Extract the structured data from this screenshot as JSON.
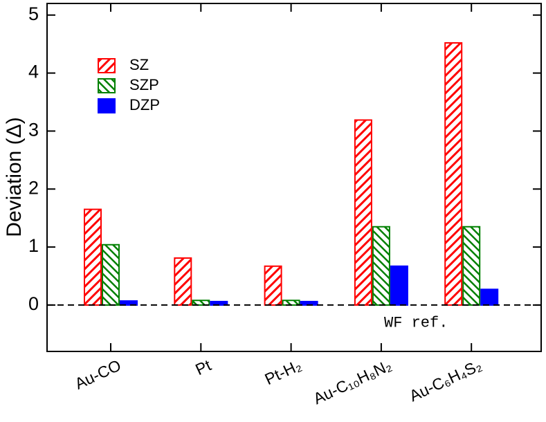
{
  "chart_data": {
    "type": "bar",
    "y_label": "Deviation (Δ)",
    "categories": [
      "Au-CO",
      "Pt",
      "Pt-H₂",
      "Au-C₁₀H₈N₂",
      "Au-C₆H₄S₂"
    ],
    "series": [
      {
        "name": "SZ",
        "color": "#ff0000",
        "hatch": "backslash",
        "values": [
          1.65,
          0.81,
          0.67,
          3.19,
          4.52
        ]
      },
      {
        "name": "SZP",
        "color": "#008000",
        "hatch": "slash",
        "values": [
          1.04,
          0.08,
          0.08,
          1.35,
          1.35
        ]
      },
      {
        "name": "DZP",
        "color": "#0000ff",
        "values": [
          0.07,
          0.06,
          0.06,
          0.67,
          0.27
        ]
      }
    ],
    "ylim": [
      -0.8,
      5.2
    ],
    "yticks": [
      0,
      1,
      2,
      3,
      4,
      5
    ],
    "reference_line": 0,
    "reference_label": "WF ref.",
    "legend": "upper left"
  }
}
